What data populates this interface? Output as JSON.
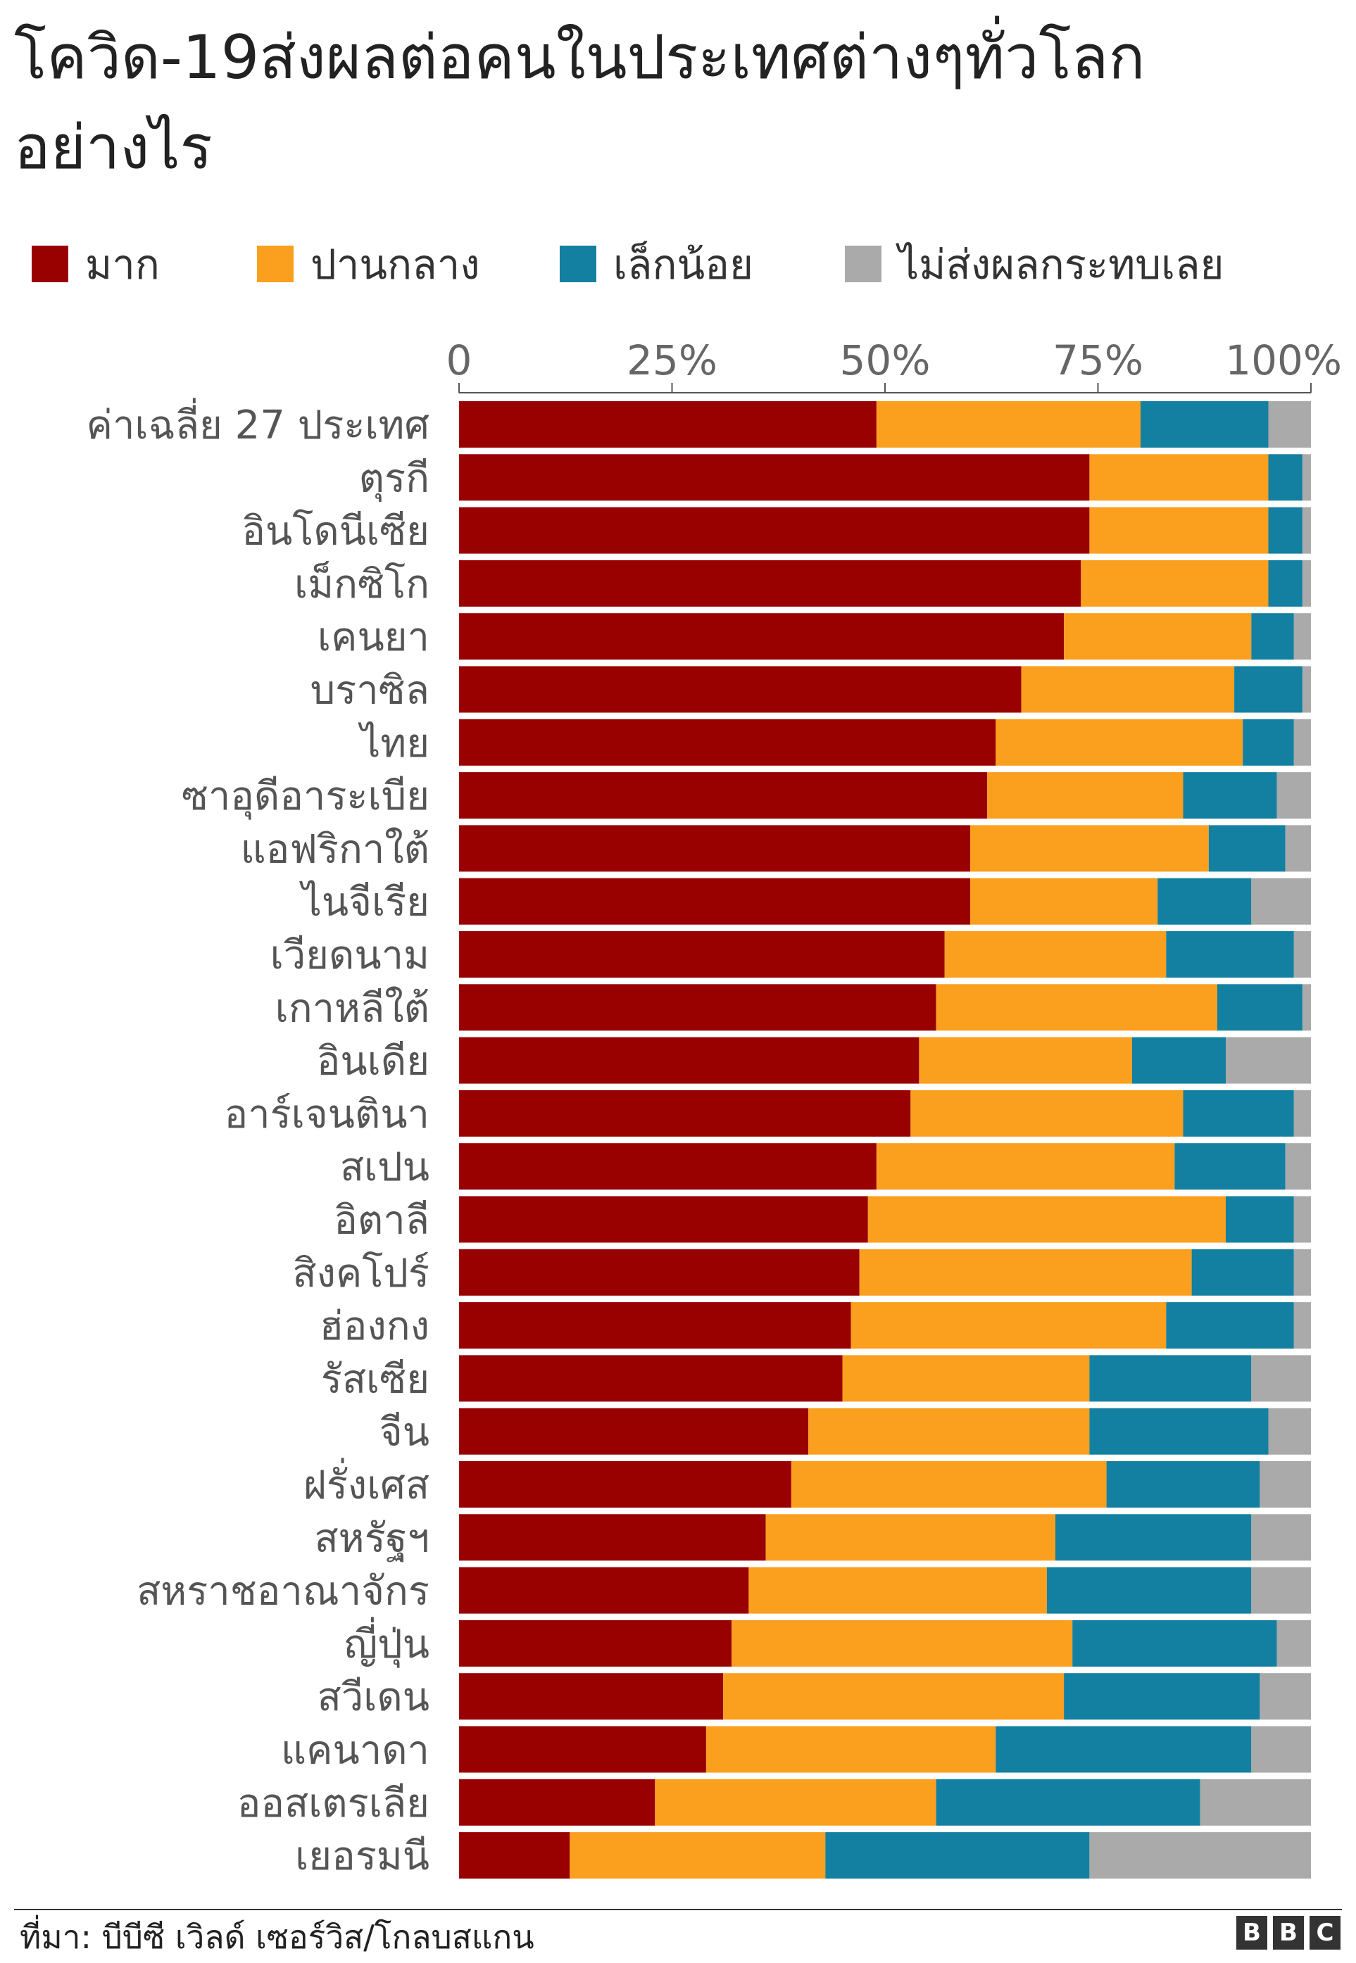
{
  "chart_data": {
    "type": "bar",
    "orientation": "horizontal",
    "stacked": true,
    "title": "โควิด-19ส่งผลต่อคนในประเทศต่างๆทั่วโลกอย่างไร",
    "xlim": [
      0,
      100
    ],
    "x_ticks": [
      "0",
      "25%",
      "50%",
      "75%",
      "100%"
    ],
    "legend_position": "top",
    "grid": false,
    "categories": [
      "ค่าเฉลี่ย 27 ประเทศ",
      "ตุรกี",
      "อินโดนีเซีย",
      "เม็กซิโก",
      "เคนยา",
      "บราซิล",
      "ไทย",
      "ซาอุดีอาระเบีย",
      "แอฟริกาใต้",
      "ไนจีเรีย",
      "เวียดนาม",
      "เกาหลีใต้",
      "อินเดีย",
      "อาร์เจนตินา",
      "สเปน",
      "อิตาลี",
      "สิงคโปร์",
      "ฮ่องกง",
      "รัสเซีย",
      "จีน",
      "ฝรั่งเศส",
      "สหรัฐฯ",
      "สหราชอาณาจักร",
      "ญี่ปุ่น",
      "สวีเดน",
      "แคนาดา",
      "ออสเตรเลีย",
      "เยอรมนี"
    ],
    "series": [
      {
        "name": "มาก",
        "color": "#990000",
        "values": [
          49,
          74,
          74,
          73,
          71,
          66,
          63,
          62,
          60,
          60,
          57,
          56,
          54,
          53,
          49,
          48,
          47,
          46,
          45,
          41,
          39,
          36,
          34,
          32,
          31,
          29,
          23,
          13
        ]
      },
      {
        "name": "ปานกลาง",
        "color": "#fa9f1e",
        "values": [
          31,
          21,
          21,
          22,
          22,
          25,
          29,
          23,
          28,
          22,
          26,
          33,
          25,
          32,
          35,
          42,
          39,
          37,
          29,
          33,
          37,
          34,
          35,
          40,
          40,
          34,
          33,
          30
        ]
      },
      {
        "name": "เล็กน้อย",
        "color": "#1380a1",
        "values": [
          15,
          4,
          4,
          4,
          5,
          8,
          6,
          11,
          9,
          11,
          15,
          10,
          11,
          13,
          13,
          8,
          12,
          15,
          19,
          21,
          18,
          23,
          24,
          24,
          23,
          30,
          31,
          31
        ]
      },
      {
        "name": "ไม่ส่งผลกระทบเลย",
        "color": "#aaaaaa",
        "values": [
          5,
          1,
          1,
          1,
          2,
          1,
          2,
          4,
          3,
          7,
          2,
          1,
          10,
          2,
          3,
          2,
          2,
          2,
          7,
          5,
          6,
          7,
          7,
          4,
          6,
          7,
          13,
          26
        ]
      }
    ]
  },
  "title_lines": [
    "โควิด-19ส่งผลต่อคนในประเทศต่างๆทั่วโลก",
    "อย่างไร"
  ],
  "source": "ที่มา: บีบีซี เวิลด์ เซอร์วิส/โกลบสแกน",
  "logo": [
    "B",
    "B",
    "C"
  ]
}
